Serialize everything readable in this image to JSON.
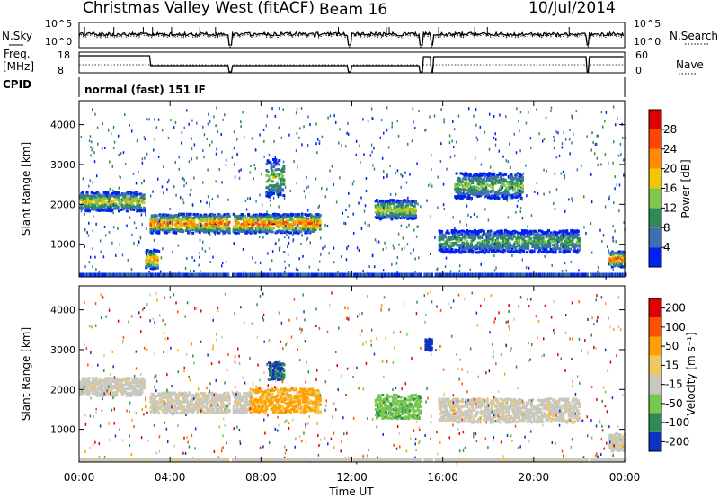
{
  "header": {
    "station": "Christmas Valley West (fitACF)",
    "beam": "Beam 16",
    "date": "10/Jul/2014"
  },
  "strip_labels": {
    "nsky": "N.Sky",
    "nsky_ticks": [
      "10^5",
      "10^0"
    ],
    "nsearch": "N.Search",
    "nsearch_ticks": [
      "10^5",
      "10^0"
    ],
    "freq_line1": "Freq.",
    "freq_line2": "[MHz]",
    "freq_ticks": [
      "18",
      "8"
    ],
    "nave": "Nave",
    "nave_ticks": [
      "60",
      "0"
    ],
    "cpid": "CPID",
    "cpid_value": "normal (fast) 151 IF"
  },
  "x_axis": {
    "label": "Time UT",
    "ticks": [
      "00:00",
      "04:00",
      "08:00",
      "12:00",
      "16:00",
      "20:00",
      "00:00"
    ]
  },
  "y_axis": {
    "label": "Slant Range [km]",
    "ticks": [
      "1000",
      "2000",
      "3000",
      "4000"
    ]
  },
  "colorbars": {
    "power": {
      "label": "Power [dB]",
      "ticks": [
        "4",
        "8",
        "12",
        "16",
        "20",
        "24",
        "28"
      ],
      "colors": [
        "#0022ee",
        "#3f6fb0",
        "#2e8b57",
        "#7ec850",
        "#f0c800",
        "#ff8c00",
        "#ff4500",
        "#e00000"
      ]
    },
    "velocity": {
      "label": "Velocity [m s⁻¹]",
      "ticks": [
        "200",
        "100",
        "50",
        "15",
        "-15",
        "-50",
        "-100",
        "-200"
      ],
      "colors": [
        "#1030c0",
        "#2e8b57",
        "#78c850",
        "#c8c8c0",
        "#f0c860",
        "#ffa000",
        "#ff5000",
        "#e00000"
      ]
    }
  },
  "chart_data": [
    {
      "type": "heatmap",
      "title": "Power",
      "xlabel": "Time UT",
      "ylabel": "Slant Range [km]",
      "xlim": [
        0,
        24
      ],
      "ylim": [
        180,
        4600
      ],
      "colorbar_label": "Power [dB]",
      "colorbar_range": [
        0,
        32
      ],
      "echo_bands": [
        {
          "t_start": 0.0,
          "t_end": 2.8,
          "range_center": 2100,
          "range_width": 300,
          "peak_db": 20
        },
        {
          "t_start": 2.9,
          "t_end": 3.4,
          "range_center": 650,
          "range_width": 300,
          "peak_db": 26
        },
        {
          "t_start": 3.1,
          "t_end": 10.6,
          "range_center": 1550,
          "range_width": 300,
          "peak_db": 28
        },
        {
          "t_start": 8.2,
          "t_end": 9.0,
          "range_center": 2700,
          "range_width": 600,
          "peak_db": 16
        },
        {
          "t_start": 13.0,
          "t_end": 14.8,
          "range_center": 1900,
          "range_width": 300,
          "peak_db": 20
        },
        {
          "t_start": 15.8,
          "t_end": 22.0,
          "range_center": 1100,
          "range_width": 350,
          "peak_db": 14
        },
        {
          "t_start": 16.5,
          "t_end": 19.5,
          "range_center": 2500,
          "range_width": 400,
          "peak_db": 16
        },
        {
          "t_start": 23.3,
          "t_end": 24.0,
          "range_center": 650,
          "range_width": 250,
          "peak_db": 28
        }
      ]
    },
    {
      "type": "heatmap",
      "title": "Velocity",
      "xlabel": "Time UT",
      "ylabel": "Slant Range [km]",
      "xlim": [
        0,
        24
      ],
      "ylim": [
        180,
        4600
      ],
      "colorbar_label": "Velocity [m s⁻¹]",
      "colorbar_range": [
        -250,
        250
      ],
      "echo_bands": [
        {
          "t_start": 0.0,
          "t_end": 2.8,
          "range_center": 2100,
          "range_width": 300,
          "velocity": 0
        },
        {
          "t_start": 3.1,
          "t_end": 7.5,
          "range_center": 1700,
          "range_width": 350,
          "velocity": 0
        },
        {
          "t_start": 7.5,
          "t_end": 10.6,
          "range_center": 1750,
          "range_width": 400,
          "velocity": -40
        },
        {
          "t_start": 8.3,
          "t_end": 9.0,
          "range_center": 2500,
          "range_width": 300,
          "velocity": 150
        },
        {
          "t_start": 13.0,
          "t_end": 15.0,
          "range_center": 1600,
          "range_width": 400,
          "velocity": 60
        },
        {
          "t_start": 15.2,
          "t_end": 15.6,
          "range_center": 3150,
          "range_width": 200,
          "velocity": 200
        },
        {
          "t_start": 15.8,
          "t_end": 22.0,
          "range_center": 1500,
          "range_width": 400,
          "velocity": 0
        },
        {
          "t_start": 23.3,
          "t_end": 24.0,
          "range_center": 700,
          "range_width": 300,
          "velocity": 0
        }
      ]
    }
  ]
}
